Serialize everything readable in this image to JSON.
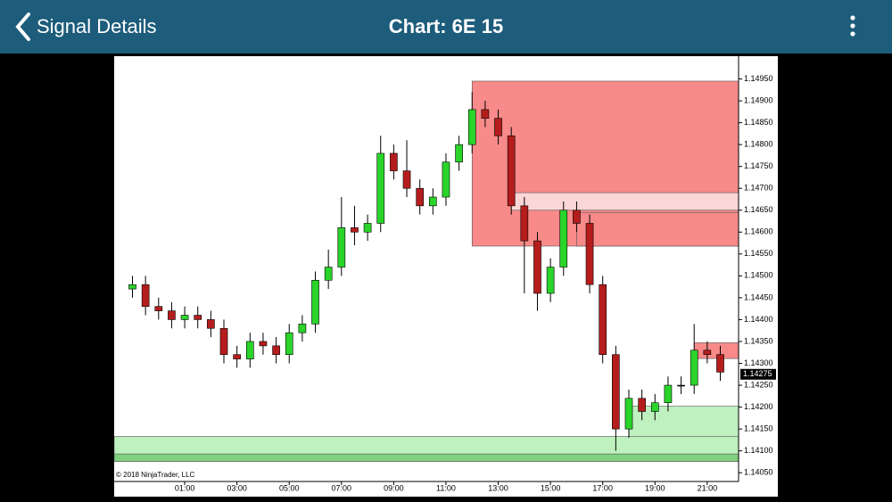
{
  "header": {
    "back": "Signal Details",
    "title": "Chart: 6E 15"
  },
  "chart_data": {
    "type": "candlestick",
    "x": [
      -1,
      -0.5,
      0,
      0.5,
      1,
      1.5,
      2,
      2.5,
      3,
      3.5,
      4,
      4.5,
      5,
      5.5,
      6,
      6.5,
      7,
      7.5,
      8,
      8.5,
      9,
      9.5,
      10,
      10.5,
      11,
      11.5,
      12,
      12.5,
      13,
      13.5,
      14,
      14.5,
      15,
      15.5,
      16,
      16.5,
      17,
      17.5,
      18,
      18.5,
      19,
      19.5,
      20,
      20.5,
      21,
      21.5
    ],
    "open": [
      1.1447,
      1.1448,
      1.1443,
      1.1442,
      1.144,
      1.1441,
      1.144,
      1.1438,
      1.1432,
      1.1431,
      1.1435,
      1.1434,
      1.1432,
      1.1437,
      1.1439,
      1.1449,
      1.1452,
      1.1461,
      1.146,
      1.1462,
      1.1478,
      1.1474,
      1.147,
      1.1466,
      1.1468,
      1.1476,
      1.148,
      1.1488,
      1.1486,
      1.1482,
      1.1466,
      1.1458,
      1.1446,
      1.1452,
      1.1465,
      1.1462,
      1.1448,
      1.1432,
      1.1415,
      1.1422,
      1.1419,
      1.1421,
      1.1425,
      1.1425,
      1.1433,
      1.1432
    ],
    "high": [
      1.145,
      1.145,
      1.1445,
      1.1444,
      1.1443,
      1.1443,
      1.1442,
      1.144,
      1.1434,
      1.1437,
      1.1437,
      1.1436,
      1.1439,
      1.1441,
      1.1451,
      1.1456,
      1.1468,
      1.1466,
      1.1464,
      1.1482,
      1.148,
      1.1481,
      1.1472,
      1.147,
      1.1478,
      1.1482,
      1.1492,
      1.149,
      1.1488,
      1.1484,
      1.1468,
      1.146,
      1.1454,
      1.1467,
      1.1467,
      1.1464,
      1.145,
      1.1434,
      1.1424,
      1.1424,
      1.1423,
      1.1427,
      1.1427,
      1.1439,
      1.1435,
      1.1434
    ],
    "low": [
      1.1445,
      1.1441,
      1.144,
      1.1438,
      1.1438,
      1.1438,
      1.1436,
      1.143,
      1.1429,
      1.1429,
      1.1432,
      1.143,
      1.143,
      1.1435,
      1.1437,
      1.1447,
      1.145,
      1.1457,
      1.1458,
      1.146,
      1.1472,
      1.1468,
      1.1464,
      1.1464,
      1.1466,
      1.1474,
      1.1478,
      1.1484,
      1.148,
      1.1464,
      1.1446,
      1.1442,
      1.1444,
      1.145,
      1.146,
      1.1446,
      1.143,
      1.141,
      1.1413,
      1.1417,
      1.1417,
      1.1419,
      1.1423,
      1.1423,
      1.143,
      1.1426
    ],
    "close": [
      1.1448,
      1.1443,
      1.1442,
      1.144,
      1.1441,
      1.144,
      1.1438,
      1.1432,
      1.1431,
      1.1435,
      1.1434,
      1.1432,
      1.1437,
      1.1439,
      1.1449,
      1.1452,
      1.1461,
      1.146,
      1.1462,
      1.1478,
      1.1474,
      1.147,
      1.1466,
      1.1468,
      1.1476,
      1.148,
      1.1488,
      1.1486,
      1.1482,
      1.1466,
      1.1458,
      1.1446,
      1.1452,
      1.1465,
      1.1462,
      1.1448,
      1.1432,
      1.1415,
      1.1422,
      1.1419,
      1.1421,
      1.1425,
      1.1425,
      1.1433,
      1.1432,
      1.1428
    ],
    "up_color": "#2ad42a",
    "down_color": "#b51d1d",
    "zones": [
      {
        "start": 12,
        "low": 1.14568,
        "high": 1.14945,
        "color": "#f88a8a"
      },
      {
        "start": 13.5,
        "low": 1.1465,
        "high": 1.1469,
        "color": "#fbd6d6"
      },
      {
        "start": 16,
        "low": 1.14568,
        "high": 1.14645,
        "color": "#f88a8a"
      },
      {
        "start": 20.5,
        "low": 1.14311,
        "high": 1.14347,
        "color": "#f88a8a"
      },
      {
        "start": 18,
        "low": 1.14121,
        "high": 1.14202,
        "color": "#bff0bf"
      },
      {
        "start": -1.7,
        "low": 1.14076,
        "high": 1.14133,
        "color": "#bff0bf"
      },
      {
        "start": -1.7,
        "low": 1.14076,
        "high": 1.14093,
        "color": "#7fd07f"
      }
    ],
    "last_price": {
      "value": 1.14275,
      "label": "1.14275"
    },
    "copyright": "© 2018 NinjaTrader, LLC",
    "xlim": [
      -1.7,
      22.2
    ],
    "xticks": [
      {
        "value": 1,
        "label": "01:00"
      },
      {
        "value": 3,
        "label": "03:00"
      },
      {
        "value": 5,
        "label": "05:00"
      },
      {
        "value": 7,
        "label": "07:00"
      },
      {
        "value": 9,
        "label": "09:00"
      },
      {
        "value": 11,
        "label": "11:00"
      },
      {
        "value": 13,
        "label": "13:00"
      },
      {
        "value": 15,
        "label": "15:00"
      },
      {
        "value": 17,
        "label": "17:00"
      },
      {
        "value": 19,
        "label": "19:00"
      },
      {
        "value": 21,
        "label": "21:00"
      }
    ],
    "ylim": [
      1.1403,
      1.15
    ],
    "yticks": [
      {
        "value": 1.1405,
        "label": "1.14050"
      },
      {
        "value": 1.141,
        "label": "1.14100"
      },
      {
        "value": 1.1415,
        "label": "1.14150"
      },
      {
        "value": 1.142,
        "label": "1.14200"
      },
      {
        "value": 1.1425,
        "label": "1.14250"
      },
      {
        "value": 1.143,
        "label": "1.14300"
      },
      {
        "value": 1.1435,
        "label": "1.14350"
      },
      {
        "value": 1.144,
        "label": "1.14400"
      },
      {
        "value": 1.1445,
        "label": "1.14450"
      },
      {
        "value": 1.145,
        "label": "1.14500"
      },
      {
        "value": 1.1455,
        "label": "1.14550"
      },
      {
        "value": 1.146,
        "label": "1.14600"
      },
      {
        "value": 1.1465,
        "label": "1.14650"
      },
      {
        "value": 1.147,
        "label": "1.14700"
      },
      {
        "value": 1.1475,
        "label": "1.14750"
      },
      {
        "value": 1.148,
        "label": "1.14800"
      },
      {
        "value": 1.1485,
        "label": "1.14850"
      },
      {
        "value": 1.149,
        "label": "1.14900"
      },
      {
        "value": 1.1495,
        "label": "1.14950"
      }
    ]
  }
}
